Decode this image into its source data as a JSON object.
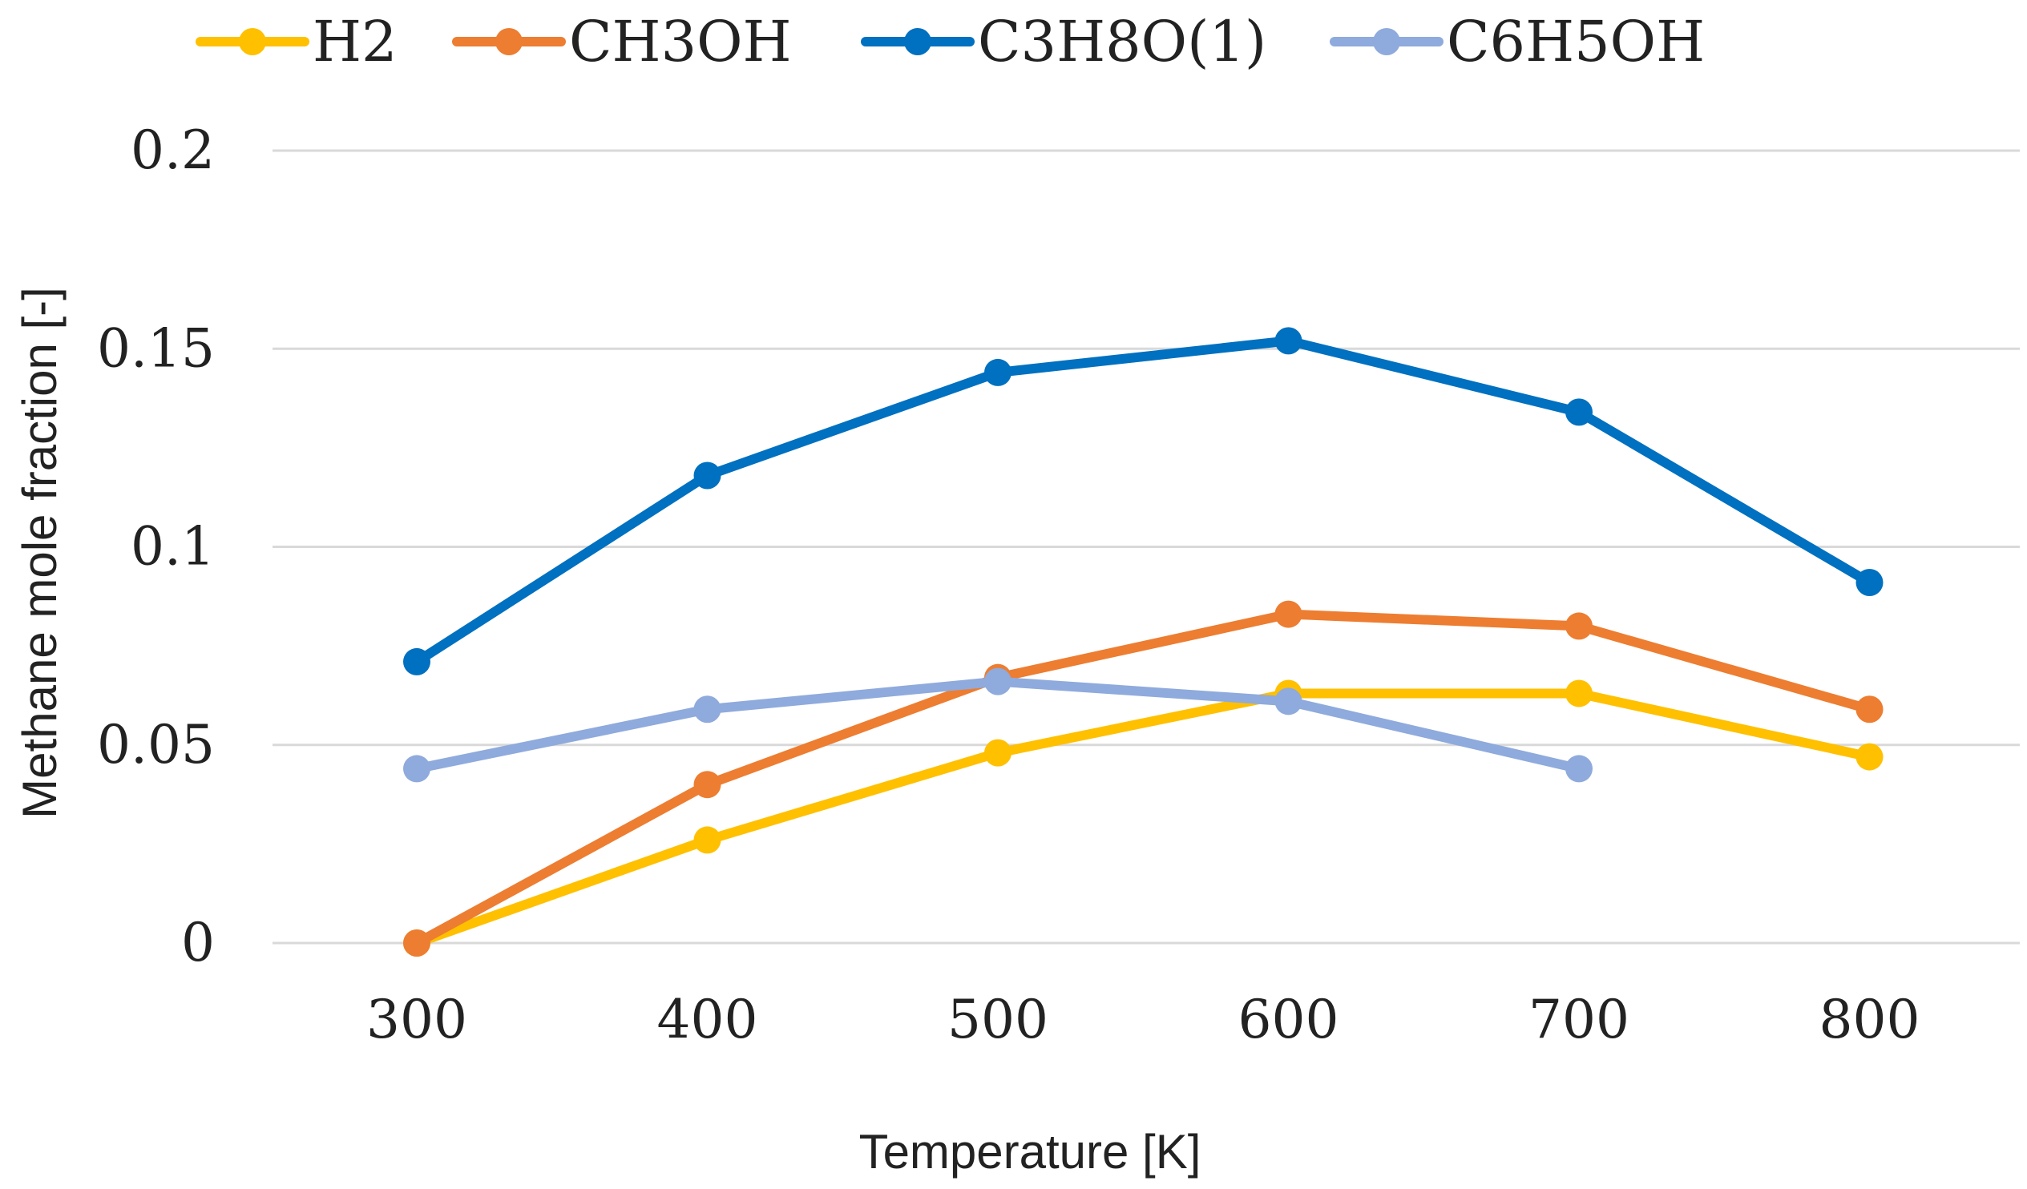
{
  "chart_data": {
    "type": "line",
    "title": "",
    "xlabel": "Temperature [K]",
    "ylabel": "Methane mole fraction [-]",
    "categories": [
      "300",
      "400",
      "500",
      "600",
      "700",
      "800"
    ],
    "ylim": [
      0,
      0.2
    ],
    "yticks": [
      0,
      0.05,
      0.1,
      0.15,
      0.2
    ],
    "ytick_labels": [
      "0",
      "0.05",
      "0.1",
      "0.15",
      "0.2"
    ],
    "grid": true,
    "legend_position": "top",
    "series": [
      {
        "name": "H2",
        "color": "#FFC000",
        "values": [
          0,
          0.026,
          0.048,
          0.063,
          0.063,
          0.047
        ]
      },
      {
        "name": "CH3OH",
        "color": "#ED7D31",
        "values": [
          0,
          0.04,
          0.067,
          0.083,
          0.08,
          0.059
        ]
      },
      {
        "name": "C3H8O(1)",
        "color": "#0070C0",
        "values": [
          0.071,
          0.118,
          0.144,
          0.152,
          0.134,
          0.091
        ]
      },
      {
        "name": "C6H5OH",
        "color": "#8FAADC",
        "values": [
          0.044,
          0.059,
          0.066,
          0.061,
          0.044,
          null
        ]
      }
    ]
  }
}
